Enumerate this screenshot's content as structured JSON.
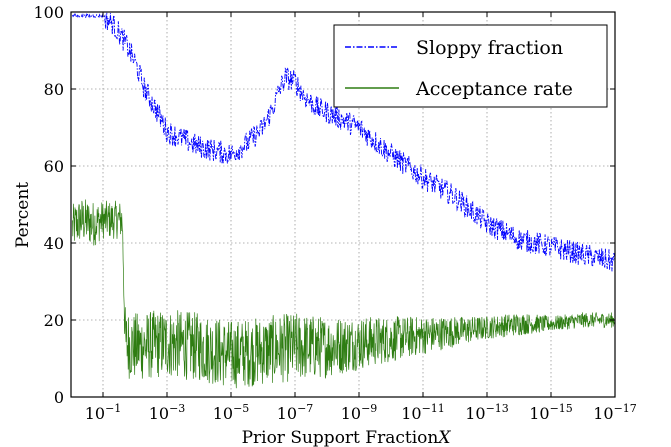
{
  "chart_data": {
    "type": "line",
    "title": "",
    "xlabel": "Prior Support Fraction",
    "xlabel_symbol": "X",
    "ylabel": "Percent",
    "x_scale": "log (decreasing)",
    "xlim": [
      1,
      1e-17
    ],
    "ylim": [
      0,
      100
    ],
    "grid": true,
    "legend_position": "top-right",
    "x_ticks": [
      {
        "base": "10",
        "exp": "−1",
        "value": 0.1
      },
      {
        "base": "10",
        "exp": "−3",
        "value": 0.001
      },
      {
        "base": "10",
        "exp": "−5",
        "value": 1e-05
      },
      {
        "base": "10",
        "exp": "−7",
        "value": 1e-07
      },
      {
        "base": "10",
        "exp": "−9",
        "value": 1e-09
      },
      {
        "base": "10",
        "exp": "−11",
        "value": 1e-11
      },
      {
        "base": "10",
        "exp": "−13",
        "value": 1e-13
      },
      {
        "base": "10",
        "exp": "−15",
        "value": 1e-15
      },
      {
        "base": "10",
        "exp": "−17",
        "value": 1e-17
      }
    ],
    "y_ticks": [
      "0",
      "20",
      "40",
      "60",
      "80",
      "100"
    ],
    "y_tick_values": [
      0,
      20,
      40,
      60,
      80,
      100
    ],
    "series": [
      {
        "name": "Sloppy fraction",
        "color": "#0000ff",
        "style": "dash-dot",
        "x": [
          0.9,
          0.5,
          0.2,
          0.12,
          0.1,
          0.05,
          0.02,
          0.01,
          0.005,
          0.002,
          0.001,
          0.0001,
          1e-05,
          3e-06,
          1e-06,
          5e-07,
          3e-07,
          2e-07,
          1e-07,
          5e-08,
          2e-08,
          1e-08,
          1e-09,
          1e-10,
          1e-11,
          1e-12,
          1e-13,
          1e-14,
          1e-15,
          1e-16,
          1e-17
        ],
        "y": [
          99,
          99,
          99,
          99,
          99,
          97,
          92,
          87,
          80,
          74,
          69,
          65,
          63,
          66,
          70,
          75,
          80,
          83,
          82,
          78,
          75,
          74,
          70,
          63,
          57,
          52,
          45,
          41,
          39,
          37,
          35
        ]
      },
      {
        "name": "Acceptance rate",
        "color": "#2e7d12",
        "style": "solid",
        "x": [
          0.9,
          0.5,
          0.2,
          0.1,
          0.05,
          0.025,
          0.02,
          0.01,
          0.001,
          0.0001,
          1e-05,
          1e-06,
          1e-07,
          1e-08,
          1e-09,
          1e-10,
          1e-11,
          1e-12,
          1e-13,
          1e-14,
          1e-15,
          1e-16,
          1e-17
        ],
        "y": [
          44,
          46,
          45,
          46,
          46,
          46,
          14,
          13,
          14,
          13,
          11,
          12,
          13,
          13,
          14,
          15,
          16,
          17,
          18,
          19,
          19,
          20,
          20
        ],
        "spread": [
          6,
          6,
          6,
          5,
          5,
          5,
          9,
          9,
          9,
          9,
          9,
          9,
          9,
          8,
          7,
          6,
          5,
          4,
          3,
          3,
          2,
          2,
          2
        ]
      }
    ]
  }
}
